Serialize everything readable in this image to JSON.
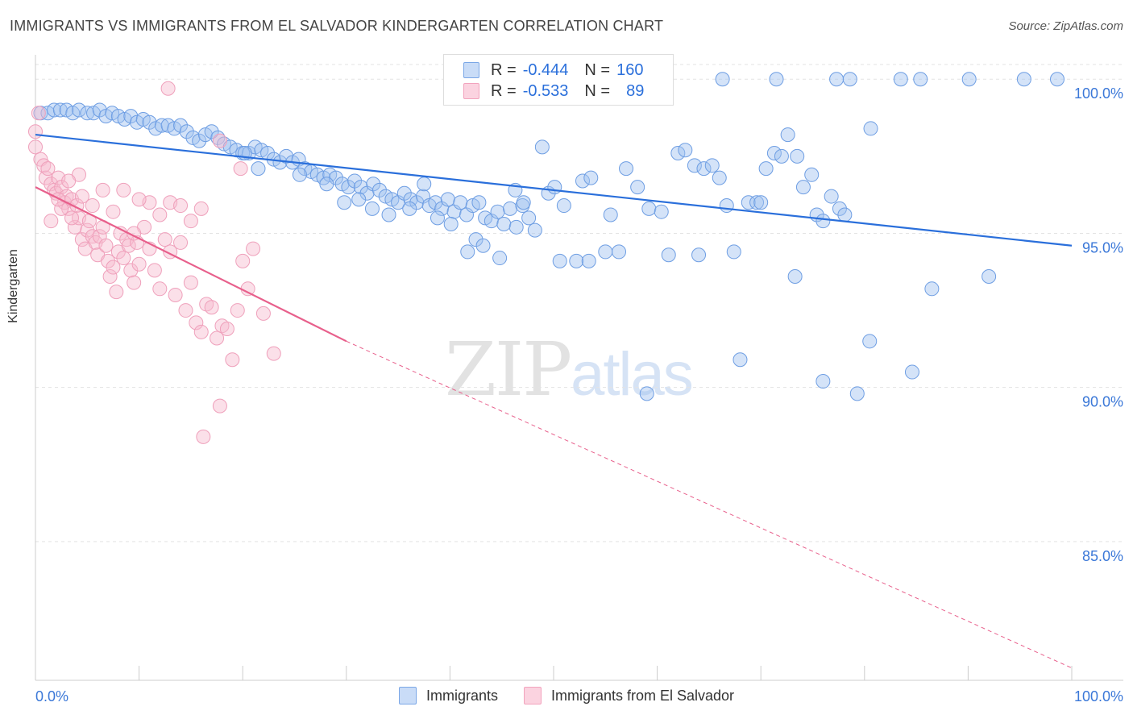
{
  "title": "IMMIGRANTS VS IMMIGRANTS FROM EL SALVADOR KINDERGARTEN CORRELATION CHART",
  "source": "Source: ZipAtlas.com",
  "watermark": {
    "zip": "ZIP",
    "atlas": "atlas"
  },
  "legend": {
    "row1": {
      "r_label": "R =",
      "r_value": "-0.444",
      "n_label": "N =",
      "n_value": "160"
    },
    "row2": {
      "r_label": "R =",
      "r_value": "-0.533",
      "n_label": "N =",
      "n_value": "89"
    }
  },
  "colors": {
    "blue": "#7ba7e6",
    "blue_line": "#2a6fdb",
    "pink": "#f2a3bd",
    "pink_line": "#e8608c",
    "tick_text": "#3b78d8"
  },
  "chart_data": {
    "type": "scatter",
    "title": "IMMIGRANTS VS IMMIGRANTS FROM EL SALVADOR KINDERGARTEN CORRELATION CHART",
    "xlabel": "",
    "ylabel": "Kindergarten",
    "xlim": [
      0,
      100
    ],
    "ylim": [
      80.5,
      101
    ],
    "x_tick_labels": [
      "0.0%",
      "100.0%"
    ],
    "y_ticks": [
      85,
      90,
      95,
      100
    ],
    "y_tick_labels": [
      "85.0%",
      "90.0%",
      "95.0%",
      "100.0%"
    ],
    "grid": true,
    "legend_position": "bottom-center",
    "series": [
      {
        "name": "Immigrants",
        "trend": {
          "x": [
            0,
            100
          ],
          "y": [
            98.2,
            94.6
          ]
        },
        "points": [
          [
            0.5,
            98.9
          ],
          [
            1.2,
            98.9
          ],
          [
            1.8,
            99
          ],
          [
            2.4,
            99
          ],
          [
            3,
            99
          ],
          [
            3.6,
            98.9
          ],
          [
            4.2,
            99
          ],
          [
            5,
            98.9
          ],
          [
            5.6,
            98.9
          ],
          [
            6.2,
            99
          ],
          [
            6.8,
            98.8
          ],
          [
            7.4,
            98.9
          ],
          [
            8,
            98.8
          ],
          [
            8.6,
            98.7
          ],
          [
            9.2,
            98.8
          ],
          [
            9.8,
            98.6
          ],
          [
            10.4,
            98.7
          ],
          [
            11,
            98.6
          ],
          [
            11.6,
            98.4
          ],
          [
            12.2,
            98.5
          ],
          [
            12.8,
            98.5
          ],
          [
            13.4,
            98.4
          ],
          [
            14,
            98.5
          ],
          [
            14.6,
            98.3
          ],
          [
            15.2,
            98.1
          ],
          [
            15.8,
            98
          ],
          [
            16.4,
            98.2
          ],
          [
            17,
            98.3
          ],
          [
            17.6,
            98.1
          ],
          [
            18.2,
            97.9
          ],
          [
            18.8,
            97.8
          ],
          [
            19.4,
            97.7
          ],
          [
            20,
            97.6
          ],
          [
            20.6,
            97.6
          ],
          [
            21.2,
            97.8
          ],
          [
            21.8,
            97.7
          ],
          [
            22.4,
            97.6
          ],
          [
            23,
            97.4
          ],
          [
            23.6,
            97.3
          ],
          [
            24.2,
            97.5
          ],
          [
            24.8,
            97.3
          ],
          [
            25.4,
            97.4
          ],
          [
            26,
            97.1
          ],
          [
            26.6,
            97
          ],
          [
            27.2,
            96.9
          ],
          [
            27.8,
            96.8
          ],
          [
            28.4,
            96.9
          ],
          [
            29,
            96.8
          ],
          [
            29.6,
            96.6
          ],
          [
            30.2,
            96.5
          ],
          [
            30.8,
            96.7
          ],
          [
            31.4,
            96.5
          ],
          [
            32,
            96.3
          ],
          [
            32.6,
            96.6
          ],
          [
            33.2,
            96.4
          ],
          [
            33.8,
            96.2
          ],
          [
            34.4,
            96.1
          ],
          [
            35,
            96
          ],
          [
            35.6,
            96.3
          ],
          [
            36.2,
            96.1
          ],
          [
            36.8,
            96
          ],
          [
            37.4,
            96.2
          ],
          [
            38,
            95.9
          ],
          [
            38.6,
            96
          ],
          [
            39.2,
            95.8
          ],
          [
            39.8,
            96.1
          ],
          [
            40.4,
            95.7
          ],
          [
            41,
            96
          ],
          [
            41.6,
            95.6
          ],
          [
            42.2,
            95.9
          ],
          [
            42.8,
            96
          ],
          [
            43.4,
            95.5
          ],
          [
            44,
            95.4
          ],
          [
            44.6,
            95.7
          ],
          [
            45.2,
            95.3
          ],
          [
            45.8,
            95.8
          ],
          [
            46.4,
            95.2
          ],
          [
            47,
            95.9
          ],
          [
            47.6,
            95.5
          ],
          [
            48.2,
            95.1
          ],
          [
            20.2,
            97.6
          ],
          [
            21.5,
            97.1
          ],
          [
            25.5,
            96.9
          ],
          [
            28.1,
            96.6
          ],
          [
            29.8,
            96
          ],
          [
            31.2,
            96.1
          ],
          [
            32.5,
            95.8
          ],
          [
            34.1,
            95.6
          ],
          [
            36.1,
            95.8
          ],
          [
            37.5,
            96.6
          ],
          [
            38.8,
            95.5
          ],
          [
            40.1,
            95.3
          ],
          [
            41.7,
            94.4
          ],
          [
            42.5,
            94.8
          ],
          [
            43.2,
            94.6
          ],
          [
            44.8,
            94.2
          ],
          [
            46.3,
            96.4
          ],
          [
            47.1,
            96.0
          ],
          [
            48.9,
            97.8
          ],
          [
            49.5,
            96.3
          ],
          [
            50.1,
            96.5
          ],
          [
            51.0,
            95.9
          ],
          [
            52.2,
            94.1
          ],
          [
            52.8,
            96.7
          ],
          [
            53.6,
            96.8
          ],
          [
            55.5,
            95.6
          ],
          [
            56.3,
            94.4
          ],
          [
            57.0,
            97.1
          ],
          [
            58.1,
            96.5
          ],
          [
            59.2,
            95.8
          ],
          [
            60.4,
            95.7
          ],
          [
            61.1,
            94.3
          ],
          [
            62.0,
            97.6
          ],
          [
            62.7,
            97.7
          ],
          [
            63.6,
            97.2
          ],
          [
            64.5,
            97.1
          ],
          [
            65.3,
            97.2
          ],
          [
            66.0,
            96.8
          ],
          [
            66.7,
            95.9
          ],
          [
            67.4,
            94.4
          ],
          [
            68.8,
            96.0
          ],
          [
            69.6,
            96.0
          ],
          [
            70.5,
            97.1
          ],
          [
            71.3,
            97.6
          ],
          [
            72.0,
            97.5
          ],
          [
            72.6,
            98.2
          ],
          [
            73.5,
            97.5
          ],
          [
            74.1,
            96.5
          ],
          [
            74.9,
            96.9
          ],
          [
            75.4,
            95.6
          ],
          [
            76.0,
            95.4
          ],
          [
            76.8,
            96.2
          ],
          [
            77.6,
            95.8
          ],
          [
            78.1,
            95.6
          ],
          [
            80.6,
            98.4
          ],
          [
            50.6,
            94.1
          ],
          [
            53.4,
            94.1
          ],
          [
            55.0,
            94.4
          ],
          [
            64.0,
            94.3
          ],
          [
            70.0,
            96.0
          ],
          [
            73.3,
            93.6
          ],
          [
            86.5,
            93.2
          ],
          [
            92.0,
            93.6
          ],
          [
            68.0,
            90.9
          ],
          [
            76.0,
            90.2
          ],
          [
            84.6,
            90.5
          ],
          [
            80.5,
            91.5
          ],
          [
            59.0,
            89.8
          ],
          [
            79.3,
            89.8
          ],
          [
            66.3,
            100
          ],
          [
            71.5,
            100
          ],
          [
            77.3,
            100
          ],
          [
            78.6,
            100
          ],
          [
            83.5,
            100
          ],
          [
            85.4,
            100
          ],
          [
            90.1,
            100
          ],
          [
            95.4,
            100
          ],
          [
            98.6,
            100
          ]
        ]
      },
      {
        "name": "Immigrants from El Salvador",
        "trend": {
          "x": [
            0,
            30
          ],
          "y": [
            96.5,
            91.5
          ]
        },
        "trend_dashed": {
          "x": [
            30,
            100
          ],
          "y": [
            91.5,
            80.9
          ]
        },
        "points": [
          [
            0,
            98.3
          ],
          [
            0,
            97.8
          ],
          [
            0.3,
            98.9
          ],
          [
            0.5,
            97.4
          ],
          [
            0.8,
            97.2
          ],
          [
            1.0,
            96.8
          ],
          [
            1.2,
            97.1
          ],
          [
            1.5,
            96.6
          ],
          [
            1.8,
            96.4
          ],
          [
            2,
            96.3
          ],
          [
            2.2,
            96.8
          ],
          [
            2.5,
            96.5
          ],
          [
            2.8,
            96.0
          ],
          [
            3,
            96.2
          ],
          [
            3.2,
            95.8
          ],
          [
            3.5,
            96.1
          ],
          [
            3.8,
            95.2
          ],
          [
            4,
            95.9
          ],
          [
            4.2,
            95.5
          ],
          [
            4.5,
            94.8
          ],
          [
            4.8,
            94.5
          ],
          [
            5,
            95.1
          ],
          [
            5.2,
            95.4
          ],
          [
            5.5,
            94.9
          ],
          [
            5.8,
            94.7
          ],
          [
            6,
            94.3
          ],
          [
            6.2,
            94.9
          ],
          [
            6.5,
            95.2
          ],
          [
            6.8,
            94.6
          ],
          [
            7,
            94.1
          ],
          [
            7.2,
            93.6
          ],
          [
            7.5,
            93.9
          ],
          [
            7.8,
            93.1
          ],
          [
            8,
            94.4
          ],
          [
            8.2,
            95
          ],
          [
            8.5,
            94.2
          ],
          [
            8.8,
            94.8
          ],
          [
            9,
            94.6
          ],
          [
            9.2,
            93.8
          ],
          [
            9.5,
            93.4
          ],
          [
            9.8,
            94.7
          ],
          [
            10,
            94.0
          ],
          [
            10.5,
            95.2
          ],
          [
            11,
            94.5
          ],
          [
            11.5,
            93.8
          ],
          [
            12,
            93.2
          ],
          [
            12.5,
            94.8
          ],
          [
            13,
            94.4
          ],
          [
            13.5,
            93.0
          ],
          [
            14,
            94.7
          ],
          [
            14.5,
            92.5
          ],
          [
            15,
            93.4
          ],
          [
            15.5,
            92.1
          ],
          [
            16,
            91.8
          ],
          [
            16.5,
            92.7
          ],
          [
            17,
            92.6
          ],
          [
            17.5,
            91.6
          ],
          [
            18,
            92.0
          ],
          [
            18.5,
            91.9
          ],
          [
            19,
            90.9
          ],
          [
            19.5,
            92.5
          ],
          [
            20,
            94.1
          ],
          [
            20.5,
            93.2
          ],
          [
            21,
            94.5
          ],
          [
            22,
            92.4
          ],
          [
            23,
            91.1
          ],
          [
            17.8,
            89.4
          ],
          [
            16.2,
            88.4
          ],
          [
            11,
            96
          ],
          [
            12,
            95.6
          ],
          [
            13,
            96
          ],
          [
            14,
            95.9
          ],
          [
            15,
            95.4
          ],
          [
            16,
            95.8
          ],
          [
            10,
            96.1
          ],
          [
            8.5,
            96.4
          ],
          [
            7.5,
            95.7
          ],
          [
            6.5,
            96.4
          ],
          [
            5.5,
            95.9
          ],
          [
            4.5,
            96.2
          ],
          [
            3.5,
            95.5
          ],
          [
            2.5,
            95.8
          ],
          [
            1.5,
            95.4
          ],
          [
            12.8,
            99.7
          ],
          [
            17.8,
            98.0
          ],
          [
            19.8,
            97.1
          ],
          [
            4.2,
            96.9
          ],
          [
            3.2,
            96.7
          ],
          [
            2.2,
            96.1
          ],
          [
            9.5,
            95.0
          ]
        ]
      }
    ]
  }
}
